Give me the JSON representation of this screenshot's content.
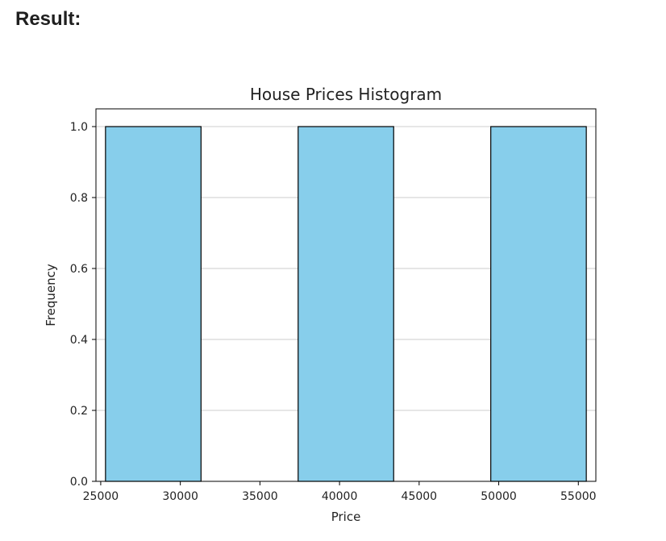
{
  "heading": "Result:",
  "chart_data": {
    "type": "bar",
    "title": "House Prices Histogram",
    "xlabel": "Price",
    "ylabel": "Frequency",
    "bins": [
      {
        "start": 25300,
        "end": 31300,
        "count": 1
      },
      {
        "start": 37400,
        "end": 43400,
        "count": 1
      },
      {
        "start": 49500,
        "end": 55500,
        "count": 1
      }
    ],
    "xticks": [
      25000,
      30000,
      35000,
      40000,
      45000,
      50000,
      55000
    ],
    "yticks": [
      0.0,
      0.2,
      0.4,
      0.6,
      0.8,
      1.0
    ],
    "xlim": [
      24700,
      56100
    ],
    "ylim": [
      0,
      1.05
    ],
    "grid": "y-axis",
    "colors": {
      "bar_fill": "#87ceeb",
      "bar_edge": "#000000",
      "grid": "#cccccc"
    }
  }
}
